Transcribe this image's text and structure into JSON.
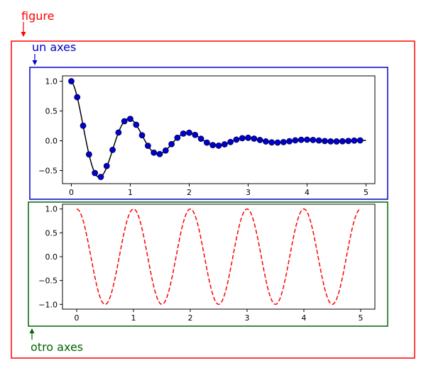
{
  "annotations": {
    "figure": {
      "label": "figure",
      "color": "#ff0000"
    },
    "axes1": {
      "label": "un axes",
      "color": "#0000cc"
    },
    "axes2": {
      "label": "otro axes",
      "color": "#006400"
    }
  },
  "chart_data": [
    {
      "type": "line",
      "subtype": "damped-oscillation",
      "title": "",
      "xlabel": "",
      "ylabel": "",
      "xlim": [
        -0.15,
        5.15
      ],
      "ylim": [
        -0.72,
        1.09
      ],
      "xticks": [
        0,
        1,
        2,
        3,
        4,
        5
      ],
      "yticks": [
        -0.5,
        0.0,
        0.5,
        1.0
      ],
      "ytick_labels": [
        "−0.5",
        "0.0",
        "0.5",
        "1.0"
      ],
      "grid": false,
      "series": [
        {
          "style": "solid-line",
          "color": "#000000",
          "function": "exp(-x) * cos(2*pi*x)",
          "x_range": [
            0,
            5
          ]
        },
        {
          "style": "markers",
          "marker": "circle",
          "color": "#0000cc",
          "x": [
            0.0,
            0.1,
            0.2,
            0.3,
            0.4,
            0.5,
            0.6,
            0.7,
            0.8,
            0.9,
            1.0,
            1.1,
            1.2,
            1.3,
            1.4,
            1.5,
            1.6,
            1.7,
            1.8,
            1.9,
            2.0,
            2.1,
            2.2,
            2.3,
            2.4,
            2.5,
            2.6,
            2.7,
            2.8,
            2.9,
            3.0,
            3.1,
            3.2,
            3.3,
            3.4,
            3.5,
            3.6,
            3.7,
            3.8,
            3.9,
            4.0,
            4.1,
            4.2,
            4.3,
            4.4,
            4.5,
            4.6,
            4.7,
            4.8,
            4.9
          ],
          "y": [
            1.0,
            0.732,
            0.253,
            -0.229,
            -0.541,
            -0.607,
            -0.424,
            -0.153,
            0.139,
            0.328,
            0.368,
            0.269,
            0.093,
            -0.084,
            -0.199,
            -0.223,
            -0.164,
            -0.056,
            0.051,
            0.121,
            0.135,
            0.099,
            0.034,
            -0.031,
            -0.073,
            -0.082,
            -0.06,
            -0.021,
            0.019,
            0.044,
            0.05,
            0.036,
            0.013,
            -0.011,
            -0.027,
            -0.03,
            -0.022,
            -0.008,
            0.007,
            0.016,
            0.018,
            0.013,
            0.005,
            -0.004,
            -0.01,
            -0.011,
            -0.008,
            -0.003,
            0.003,
            0.006
          ]
        }
      ]
    },
    {
      "type": "line",
      "subtype": "cosine",
      "title": "",
      "xlabel": "",
      "ylabel": "",
      "xlim": [
        -0.25,
        5.25
      ],
      "ylim": [
        -1.1,
        1.1
      ],
      "xticks": [
        0,
        1,
        2,
        3,
        4,
        5
      ],
      "yticks": [
        -1.0,
        -0.5,
        0.0,
        0.5,
        1.0
      ],
      "ytick_labels": [
        "−1.0",
        "−0.5",
        "0.0",
        "0.5",
        "1.0"
      ],
      "grid": false,
      "series": [
        {
          "style": "dashed-line",
          "color": "#ff0000",
          "function": "cos(2*pi*x)",
          "x_range": [
            0,
            5
          ]
        }
      ]
    }
  ]
}
